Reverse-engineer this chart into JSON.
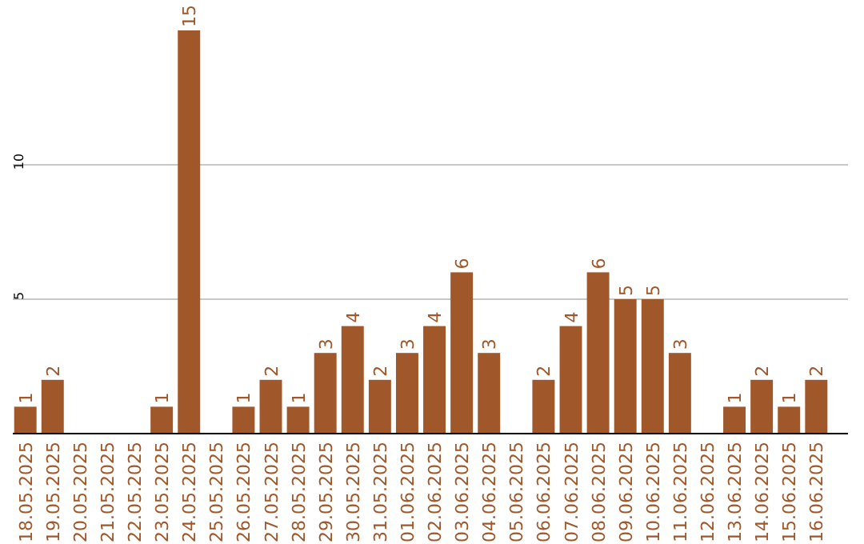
{
  "chart_data": {
    "type": "bar",
    "categories": [
      "18.05.2025",
      "19.05.2025",
      "20.05.2025",
      "21.05.2025",
      "22.05.2025",
      "23.05.2025",
      "24.05.2025",
      "25.05.2025",
      "26.05.2025",
      "27.05.2025",
      "28.05.2025",
      "29.05.2025",
      "30.05.2025",
      "31.05.2025",
      "01.06.2025",
      "02.06.2025",
      "03.06.2025",
      "04.06.2025",
      "05.06.2025",
      "06.06.2025",
      "07.06.2025",
      "08.06.2025",
      "09.06.2025",
      "10.06.2025",
      "11.06.2025",
      "12.06.2025",
      "13.06.2025",
      "14.06.2025",
      "15.06.2025",
      "16.06.2025"
    ],
    "values": [
      1,
      2,
      0,
      0,
      0,
      1,
      15,
      0,
      1,
      2,
      1,
      3,
      4,
      2,
      3,
      4,
      6,
      3,
      0,
      2,
      4,
      6,
      5,
      5,
      3,
      0,
      1,
      2,
      1,
      2
    ],
    "value_labels": [
      "1",
      "2",
      null,
      null,
      null,
      "1",
      "15",
      null,
      "1",
      "2",
      "1",
      "3",
      "4",
      "2",
      "3",
      "4",
      "6",
      "3",
      null,
      "2",
      "4",
      "6",
      "5",
      "5",
      "3",
      null,
      "1",
      "2",
      "1",
      "2"
    ],
    "color": "#a0582a",
    "ylim": [
      0,
      15
    ],
    "yticks": [
      5,
      10
    ],
    "grid": "y"
  }
}
